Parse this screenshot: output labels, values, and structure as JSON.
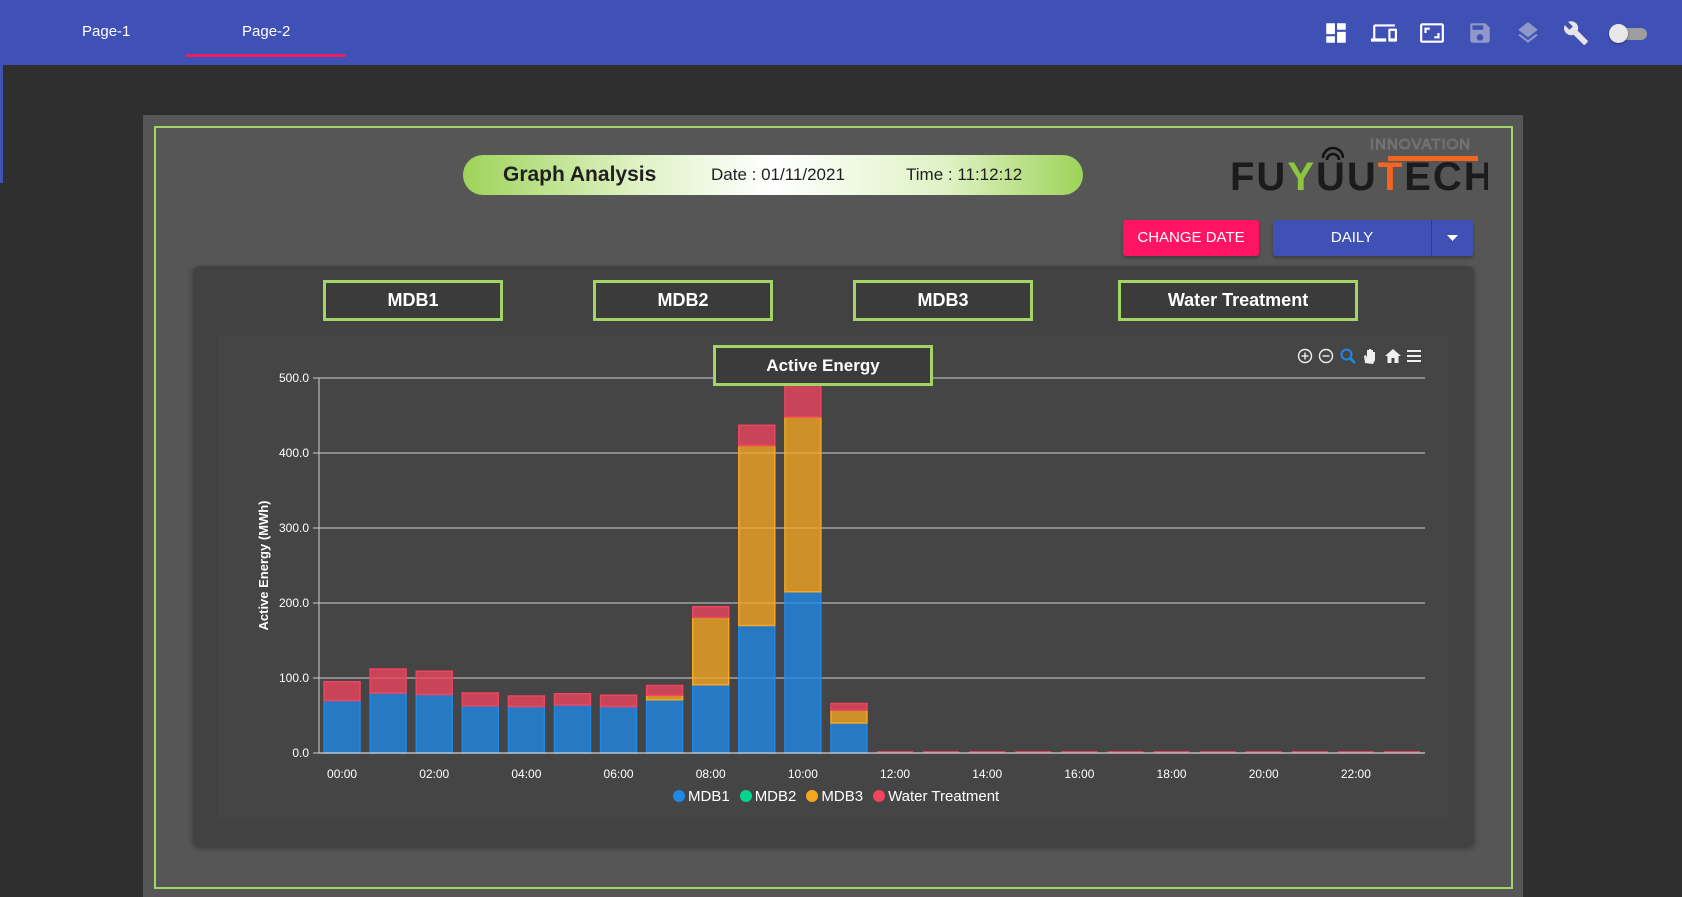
{
  "tabs": [
    {
      "label": "Page-1",
      "active": false
    },
    {
      "label": "Page-2",
      "active": true
    }
  ],
  "toolbar_icons": [
    "dashboard-icon",
    "devices-icon",
    "fullscreen-icon",
    "save-icon",
    "layers-icon",
    "wrench-icon",
    "toggle-switch"
  ],
  "header": {
    "title": "Graph Analysis",
    "date": "Date : 01/11/2021",
    "time": "Time : 11:12:12"
  },
  "logo": {
    "text": "FUYUUTECH",
    "tagline": "INNOVATION"
  },
  "buttons": {
    "change_date": "CHANGE DATE",
    "period": "DAILY"
  },
  "meters": [
    "MDB1",
    "MDB2",
    "MDB3",
    "Water Treatment"
  ],
  "chart_title": "Active Energy",
  "chart_toolbar_icons": [
    "zoom-in-icon",
    "zoom-out-icon",
    "selection-zoom-icon",
    "pan-icon",
    "home-icon",
    "menu-icon"
  ],
  "colors": {
    "topbar": "#3f51b5",
    "accent_border": "#a3d468",
    "change_date": "#ff1464",
    "MDB1": "#1e88e5",
    "MDB2": "#00d68f",
    "MDB3": "#f5a623",
    "Water Treatment": "#f0445f"
  },
  "chart_data": {
    "type": "bar",
    "stacked": true,
    "title": "Active Energy",
    "ylabel": "Active Energy (MWh)",
    "ylim": [
      0,
      500
    ],
    "yticks": [
      "0.0",
      "100.0",
      "200.0",
      "300.0",
      "400.0",
      "500.0"
    ],
    "xtick_labels": [
      "00:00",
      "02:00",
      "04:00",
      "06:00",
      "08:00",
      "10:00",
      "12:00",
      "14:00",
      "16:00",
      "18:00",
      "20:00",
      "22:00"
    ],
    "categories": [
      "00:00",
      "01:00",
      "02:00",
      "03:00",
      "04:00",
      "05:00",
      "06:00",
      "07:00",
      "08:00",
      "09:00",
      "10:00",
      "11:00",
      "12:00",
      "13:00",
      "14:00",
      "15:00",
      "16:00",
      "17:00",
      "18:00",
      "19:00",
      "20:00",
      "21:00",
      "22:00",
      "23:00"
    ],
    "series": [
      {
        "name": "MDB1",
        "values": [
          70,
          80,
          78,
          63,
          62,
          64,
          62,
          71,
          91,
          170,
          215,
          40,
          0,
          0,
          0,
          0,
          0,
          0,
          0,
          0,
          0,
          0,
          0,
          0
        ]
      },
      {
        "name": "MDB2",
        "values": [
          0,
          0,
          0,
          0,
          0,
          0,
          0,
          0,
          0,
          0,
          0,
          0,
          0,
          0,
          0,
          0,
          0,
          0,
          0,
          0,
          0,
          0,
          0,
          0
        ]
      },
      {
        "name": "MDB3",
        "values": [
          0,
          0,
          0,
          0,
          0,
          0,
          0,
          6,
          90,
          240,
          233,
          17,
          0,
          0,
          0,
          0,
          0,
          0,
          0,
          0,
          0,
          0,
          0,
          0
        ]
      },
      {
        "name": "Water Treatment",
        "values": [
          25,
          32,
          31,
          17,
          14,
          15,
          15,
          13,
          14,
          27,
          45,
          9,
          0,
          0,
          0,
          0,
          0,
          0,
          0,
          0,
          0,
          0,
          0,
          0
        ]
      }
    ],
    "legend": "bottom",
    "grid": true
  }
}
